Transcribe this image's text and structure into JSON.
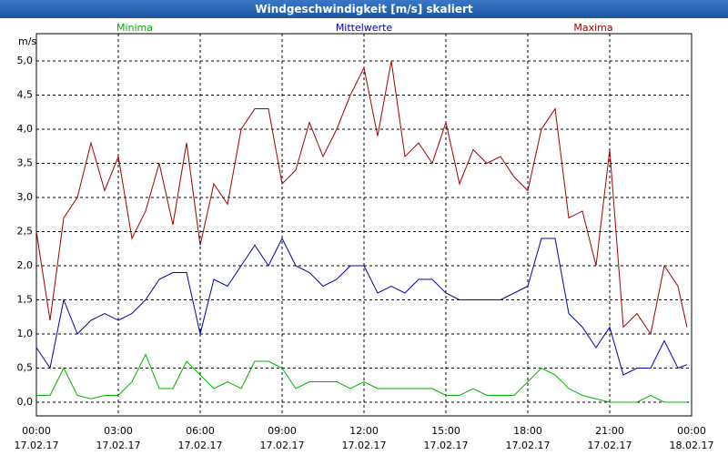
{
  "chart_data": {
    "type": "line",
    "title": "Windgeschwindigkeit [m/s] skaliert",
    "y_label": "m/s",
    "x": [
      0,
      0.5,
      1,
      1.5,
      2,
      2.5,
      3,
      3.5,
      4,
      4.5,
      5,
      5.5,
      6,
      6.5,
      7,
      7.5,
      8,
      8.5,
      9,
      9.5,
      10,
      10.5,
      11,
      11.5,
      12,
      12.5,
      13,
      13.5,
      14,
      14.5,
      15,
      15.5,
      16,
      16.5,
      17,
      17.5,
      18,
      18.5,
      19,
      19.5,
      20,
      20.5,
      21,
      21.5,
      22,
      22.5,
      23,
      23.5,
      23.83
    ],
    "series": [
      {
        "name": "Minima",
        "color": "#00b000",
        "values": [
          0.1,
          0.1,
          0.5,
          0.1,
          0.05,
          0.1,
          0.1,
          0.3,
          0.7,
          0.2,
          0.2,
          0.6,
          0.4,
          0.2,
          0.3,
          0.2,
          0.6,
          0.6,
          0.5,
          0.2,
          0.3,
          0.3,
          0.3,
          0.2,
          0.3,
          0.2,
          0.2,
          0.2,
          0.2,
          0.2,
          0.1,
          0.1,
          0.2,
          0.1,
          0.1,
          0.1,
          0.3,
          0.5,
          0.4,
          0.2,
          0.1,
          0.05,
          0.0,
          0.0,
          0.0,
          0.1,
          0.0,
          0.0,
          0.0
        ]
      },
      {
        "name": "Mittelwerte",
        "color": "#0000b0",
        "values": [
          0.8,
          0.5,
          1.5,
          1.0,
          1.2,
          1.3,
          1.2,
          1.3,
          1.5,
          1.8,
          1.9,
          1.9,
          1.0,
          1.8,
          1.7,
          2.0,
          2.3,
          2.0,
          2.4,
          2.0,
          1.9,
          1.7,
          1.8,
          2.0,
          2.0,
          1.6,
          1.7,
          1.6,
          1.8,
          1.8,
          1.6,
          1.5,
          1.5,
          1.5,
          1.5,
          1.6,
          1.7,
          2.4,
          2.4,
          1.3,
          1.1,
          0.8,
          1.1,
          0.4,
          0.5,
          0.5,
          0.9,
          0.5,
          0.55
        ]
      },
      {
        "name": "Maxima",
        "color": "#a00000",
        "values": [
          2.5,
          1.2,
          2.7,
          3.0,
          3.8,
          3.1,
          3.6,
          2.4,
          2.8,
          3.5,
          2.6,
          3.8,
          2.3,
          3.2,
          2.9,
          4.0,
          4.3,
          4.3,
          3.2,
          3.4,
          4.1,
          3.6,
          4.0,
          4.5,
          4.9,
          3.9,
          5.0,
          3.6,
          3.8,
          3.5,
          4.1,
          3.2,
          3.7,
          3.5,
          3.6,
          3.3,
          3.1,
          4.0,
          4.3,
          2.7,
          2.8,
          2.0,
          3.7,
          1.1,
          1.3,
          1.0,
          2.0,
          1.7,
          1.1
        ]
      }
    ],
    "xlim": [
      0,
      24
    ],
    "xticks": [
      {
        "value": 0,
        "label": "00:00"
      },
      {
        "value": 3,
        "label": "03:00"
      },
      {
        "value": 6,
        "label": "06:00"
      },
      {
        "value": 9,
        "label": "09:00"
      },
      {
        "value": 12,
        "label": "12:00"
      },
      {
        "value": 15,
        "label": "15:00"
      },
      {
        "value": 18,
        "label": "18:00"
      },
      {
        "value": 21,
        "label": "21:00"
      },
      {
        "value": 24,
        "label": "00:00"
      }
    ],
    "xtick_dates": [
      "17.02.17",
      "17.02.17",
      "17.02.17",
      "17.02.17",
      "17.02.17",
      "17.02.17",
      "17.02.17",
      "17.02.17",
      "18.02.17"
    ],
    "ylim": [
      -0.2,
      5.4
    ],
    "yticks": [
      {
        "value": 0,
        "label": "0,0"
      },
      {
        "value": 0.5,
        "label": "0,5"
      },
      {
        "value": 1,
        "label": "1,0"
      },
      {
        "value": 1.5,
        "label": "1,5"
      },
      {
        "value": 2,
        "label": "2,0"
      },
      {
        "value": 2.5,
        "label": "2,5"
      },
      {
        "value": 3,
        "label": "3,0"
      },
      {
        "value": 3.5,
        "label": "3,5"
      },
      {
        "value": 4,
        "label": "4,0"
      },
      {
        "value": 4.5,
        "label": "4,5"
      },
      {
        "value": 5,
        "label": "5,0"
      }
    ],
    "grid": true
  }
}
